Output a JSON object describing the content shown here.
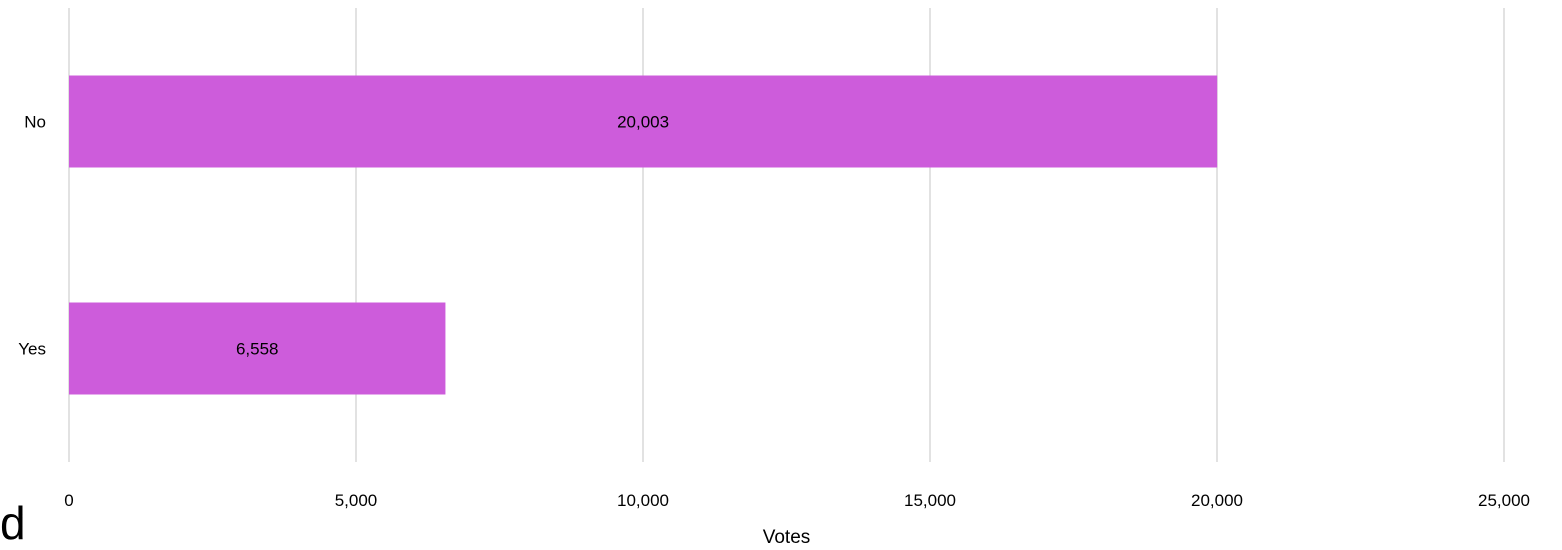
{
  "stray_text": "d",
  "chart_data": {
    "type": "bar",
    "orientation": "horizontal",
    "categories": [
      "No",
      "Yes"
    ],
    "values": [
      20003,
      6558
    ],
    "value_labels": [
      "20,003",
      "6,558"
    ],
    "title": "",
    "xlabel": "Votes",
    "ylabel": "",
    "xlim": [
      0,
      25000
    ],
    "xticks": [
      0,
      5000,
      10000,
      15000,
      20000,
      25000
    ],
    "xtick_labels": [
      "0",
      "5,000",
      "10,000",
      "15,000",
      "20,000",
      "25,000"
    ],
    "grid": "vertical",
    "legend": "none",
    "bar_color": "#CD5CDB",
    "grid_color": "#D9D9D9"
  }
}
